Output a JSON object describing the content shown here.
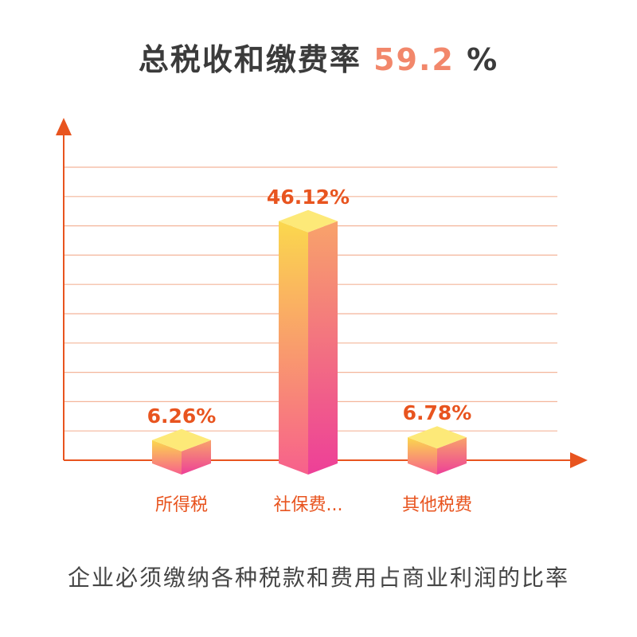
{
  "header": {
    "title": "总税收和缴费率",
    "total_value": "59.2",
    "total_unit": "%"
  },
  "chart_data": {
    "type": "bar",
    "categories": [
      "所得税",
      "社保费...",
      "其他税费"
    ],
    "values": [
      6.26,
      46.12,
      6.78
    ],
    "data_labels": [
      "6.26%",
      "46.12%",
      "6.78%"
    ],
    "ylim": [
      0,
      50
    ],
    "grid": true,
    "legend": "none"
  },
  "footer": {
    "caption": "企业必须缴纳各种税款和费用占商业利润的比率"
  },
  "colors": {
    "axis": "#e8541f",
    "grid": "#f4b59a",
    "label": "#e8541f",
    "bar_top": "#fde978",
    "bar_front_top": "#fbd84d",
    "bar_front_bottom": "#f7608c",
    "bar_side_top": "#f8a36a",
    "bar_side_bottom": "#ed3f98"
  }
}
